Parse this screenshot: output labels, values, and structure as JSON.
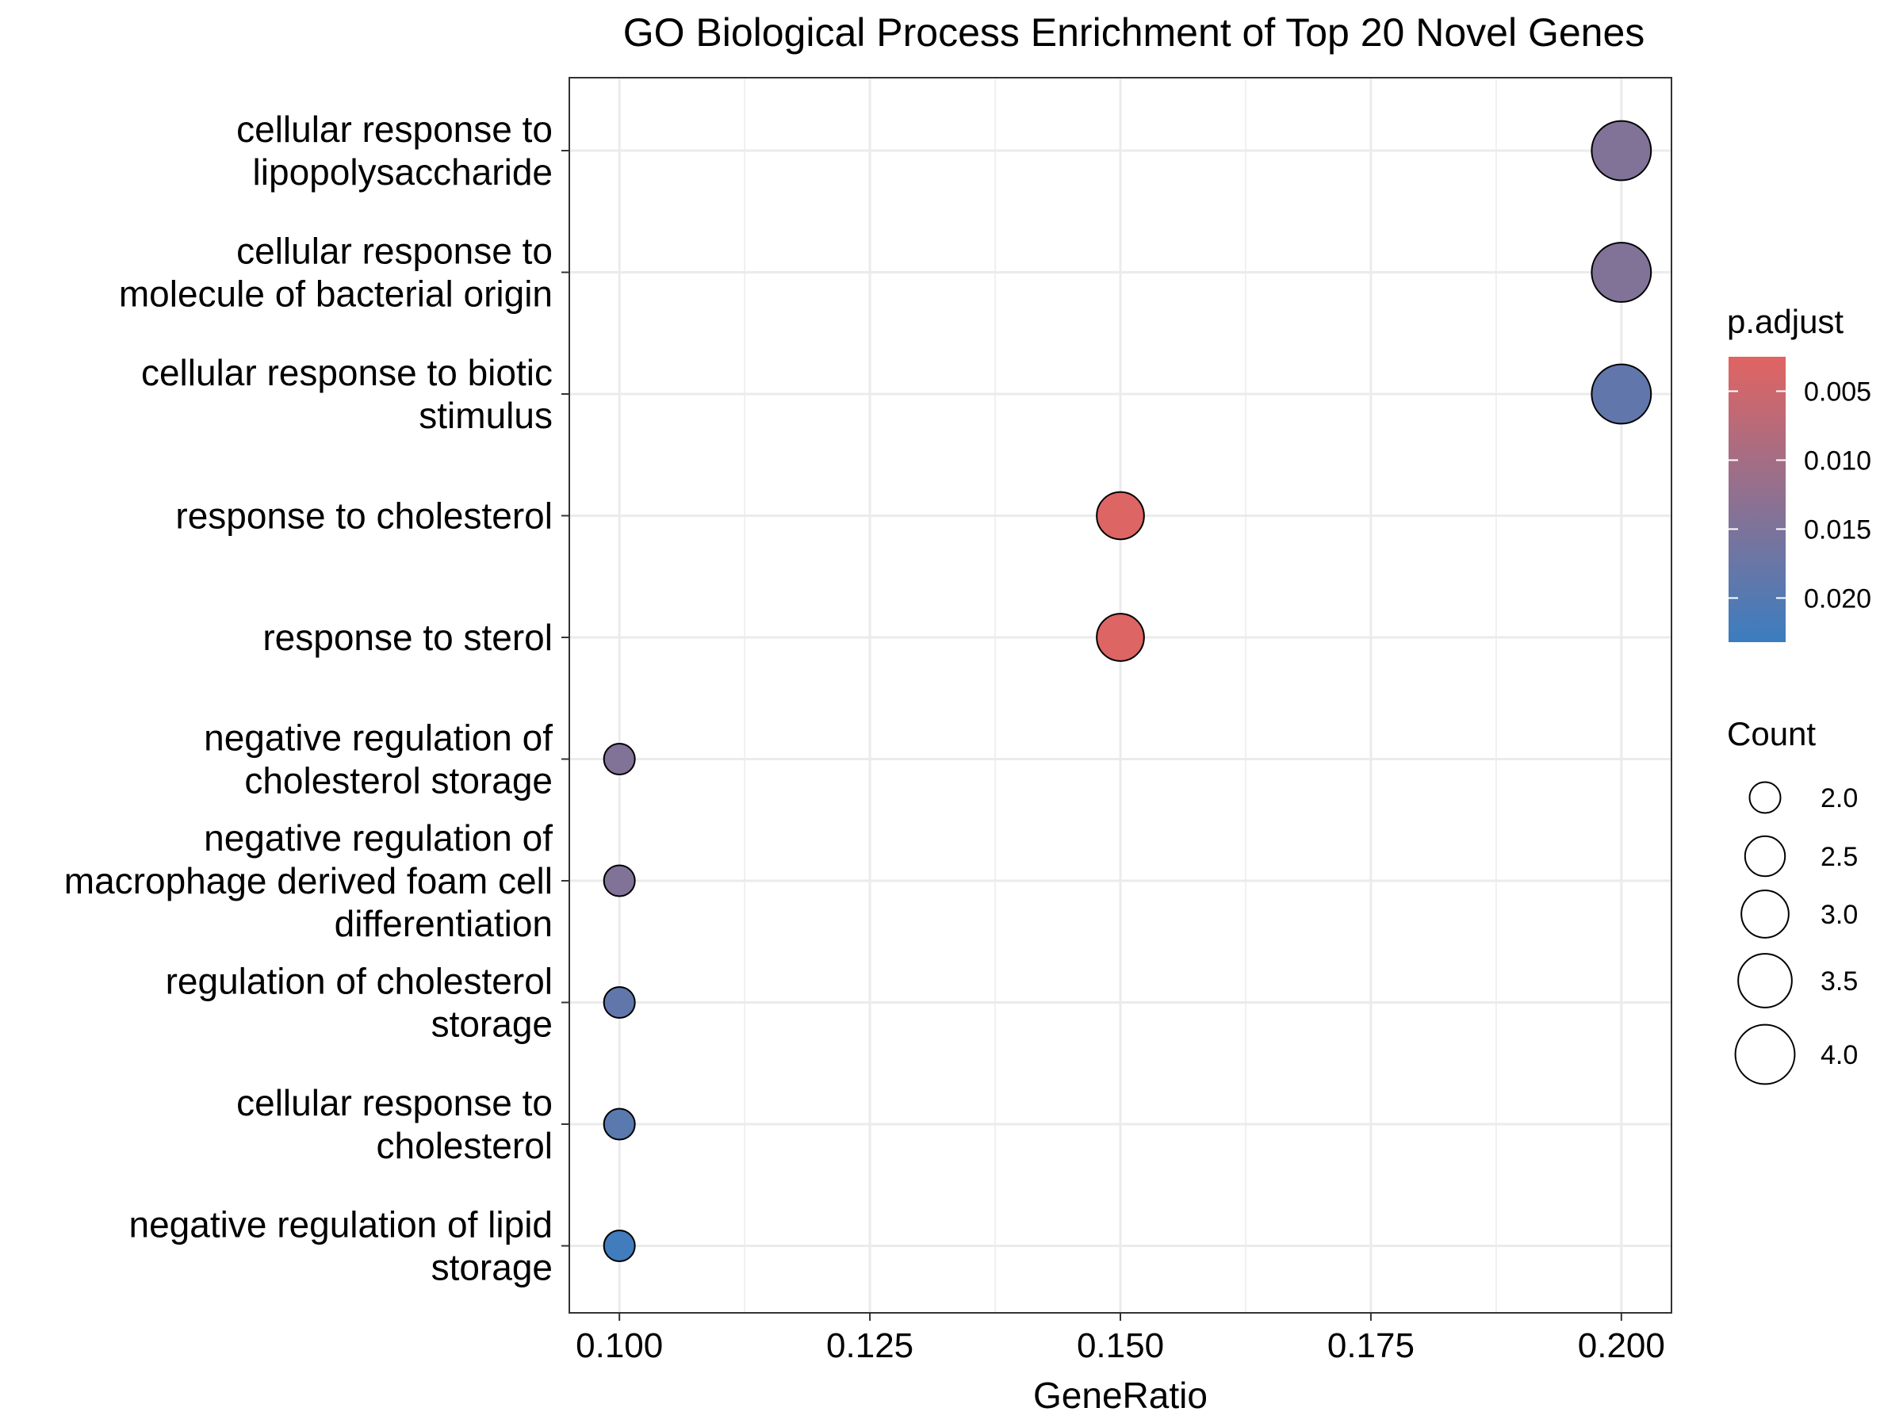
{
  "chart_data": {
    "type": "scatter",
    "title": "GO Biological Process Enrichment of Top 20 Novel Genes",
    "xlabel": "GeneRatio",
    "ylabel": "",
    "xlim": [
      0.095,
      0.205
    ],
    "x_ticks": [
      "0.100",
      "0.125",
      "0.150",
      "0.175",
      "0.200"
    ],
    "grid": true,
    "terms": [
      {
        "label": [
          "cellular response to",
          "lipopolysaccharide"
        ],
        "gene_ratio": 0.2,
        "count": 4,
        "p_adjust": 0.0145
      },
      {
        "label": [
          "cellular response to",
          "molecule of bacterial origin"
        ],
        "gene_ratio": 0.2,
        "count": 4,
        "p_adjust": 0.0145
      },
      {
        "label": [
          "cellular response to biotic",
          "stimulus"
        ],
        "gene_ratio": 0.2,
        "count": 4,
        "p_adjust": 0.0185
      },
      {
        "label": [
          "response to cholesterol"
        ],
        "gene_ratio": 0.15,
        "count": 3,
        "p_adjust": 0.003
      },
      {
        "label": [
          "response to sterol"
        ],
        "gene_ratio": 0.15,
        "count": 3,
        "p_adjust": 0.003
      },
      {
        "label": [
          "negative regulation of",
          "cholesterol storage"
        ],
        "gene_ratio": 0.1,
        "count": 2,
        "p_adjust": 0.0145
      },
      {
        "label": [
          "negative regulation of",
          "macrophage derived foam cell",
          "differentiation"
        ],
        "gene_ratio": 0.1,
        "count": 2,
        "p_adjust": 0.0145
      },
      {
        "label": [
          "regulation of cholesterol",
          "storage"
        ],
        "gene_ratio": 0.1,
        "count": 2,
        "p_adjust": 0.0185
      },
      {
        "label": [
          "cellular response to",
          "cholesterol"
        ],
        "gene_ratio": 0.1,
        "count": 2,
        "p_adjust": 0.0195
      },
      {
        "label": [
          "negative regulation of lipid",
          "storage"
        ],
        "gene_ratio": 0.1,
        "count": 2,
        "p_adjust": 0.0225
      }
    ],
    "color_legend": {
      "title": "p.adjust",
      "range": [
        0.0025,
        0.0232
      ],
      "ticks": [
        0.005,
        0.01,
        0.015,
        0.02
      ],
      "tick_labels": [
        "0.005",
        "0.010",
        "0.015",
        "0.020"
      ],
      "low_color": "#E16462",
      "high_color": "#3B7DC0"
    },
    "size_legend": {
      "title": "Count",
      "values": [
        2.0,
        2.5,
        3.0,
        3.5,
        4.0
      ],
      "labels": [
        "2.0",
        "2.5",
        "3.0",
        "3.5",
        "4.0"
      ]
    }
  }
}
